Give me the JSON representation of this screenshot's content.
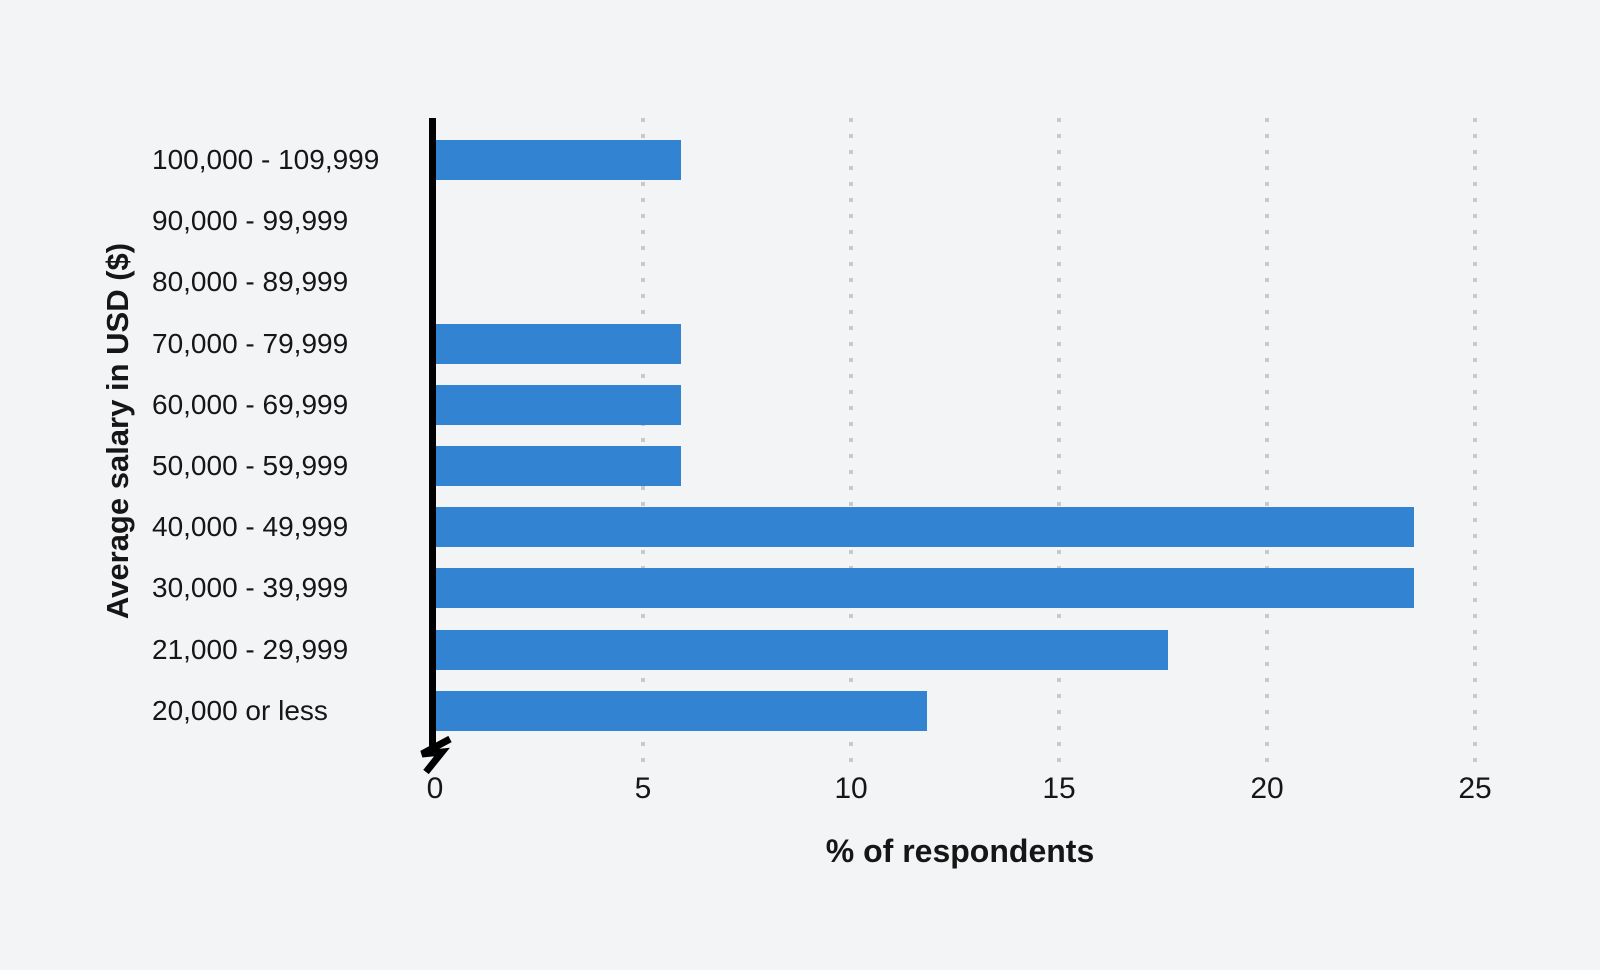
{
  "colors": {
    "background": "#f3f4f6",
    "bar": "#3284d3",
    "grid": "#c9c9c9",
    "axis": "#000000",
    "text": "#161616"
  },
  "chart_data": {
    "type": "bar",
    "orientation": "horizontal",
    "title": "",
    "xlabel": "% of respondents",
    "ylabel": "Average salary in USD ($)",
    "categories": [
      "100,000 - 109,999",
      "90,000 - 99,999",
      "80,000 - 89,999",
      "70,000 - 79,999",
      "60,000 - 69,999",
      "50,000 - 59,999",
      "40,000 - 49,999",
      "30,000 - 39,999",
      "21,000 - 29,999",
      "20,000 or less"
    ],
    "values": [
      5.9,
      0,
      0,
      5.9,
      5.9,
      5.9,
      23.5,
      23.5,
      17.6,
      11.8
    ],
    "xlim": [
      0,
      26
    ],
    "xticks": [
      0,
      5,
      10,
      15,
      20,
      25
    ],
    "grid": "dotted-vertical",
    "legend": "none",
    "axis_break_at_origin": true
  }
}
